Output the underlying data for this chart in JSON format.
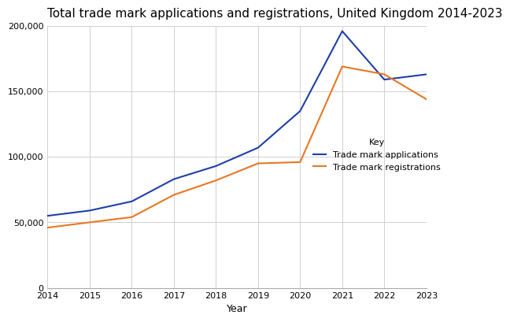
{
  "title": "Total trade mark applications and registrations, United Kingdom 2014-2023",
  "xlabel": "Year",
  "years": [
    2014,
    2015,
    2016,
    2017,
    2018,
    2019,
    2020,
    2021,
    2022,
    2023
  ],
  "applications": [
    55000,
    59000,
    66000,
    83000,
    93000,
    107000,
    135000,
    196000,
    159000,
    163000
  ],
  "registrations": [
    46000,
    50000,
    54000,
    71000,
    82000,
    95000,
    96000,
    169000,
    163000,
    144000
  ],
  "app_color": "#1f3fa8",
  "reg_color": "#e87722",
  "ylim": [
    0,
    200000
  ],
  "yticks": [
    0,
    50000,
    100000,
    150000,
    200000
  ],
  "legend_title": "Key",
  "legend_app": "Trade mark applications",
  "legend_reg": "Trade mark registrations",
  "bg_color": "#ffffff",
  "plot_bg_color": "#ffffff",
  "grid_color": "#d0d0d0",
  "title_fontsize": 11,
  "label_fontsize": 9,
  "tick_fontsize": 8,
  "legend_fontsize": 8,
  "legend_title_fontsize": 8
}
